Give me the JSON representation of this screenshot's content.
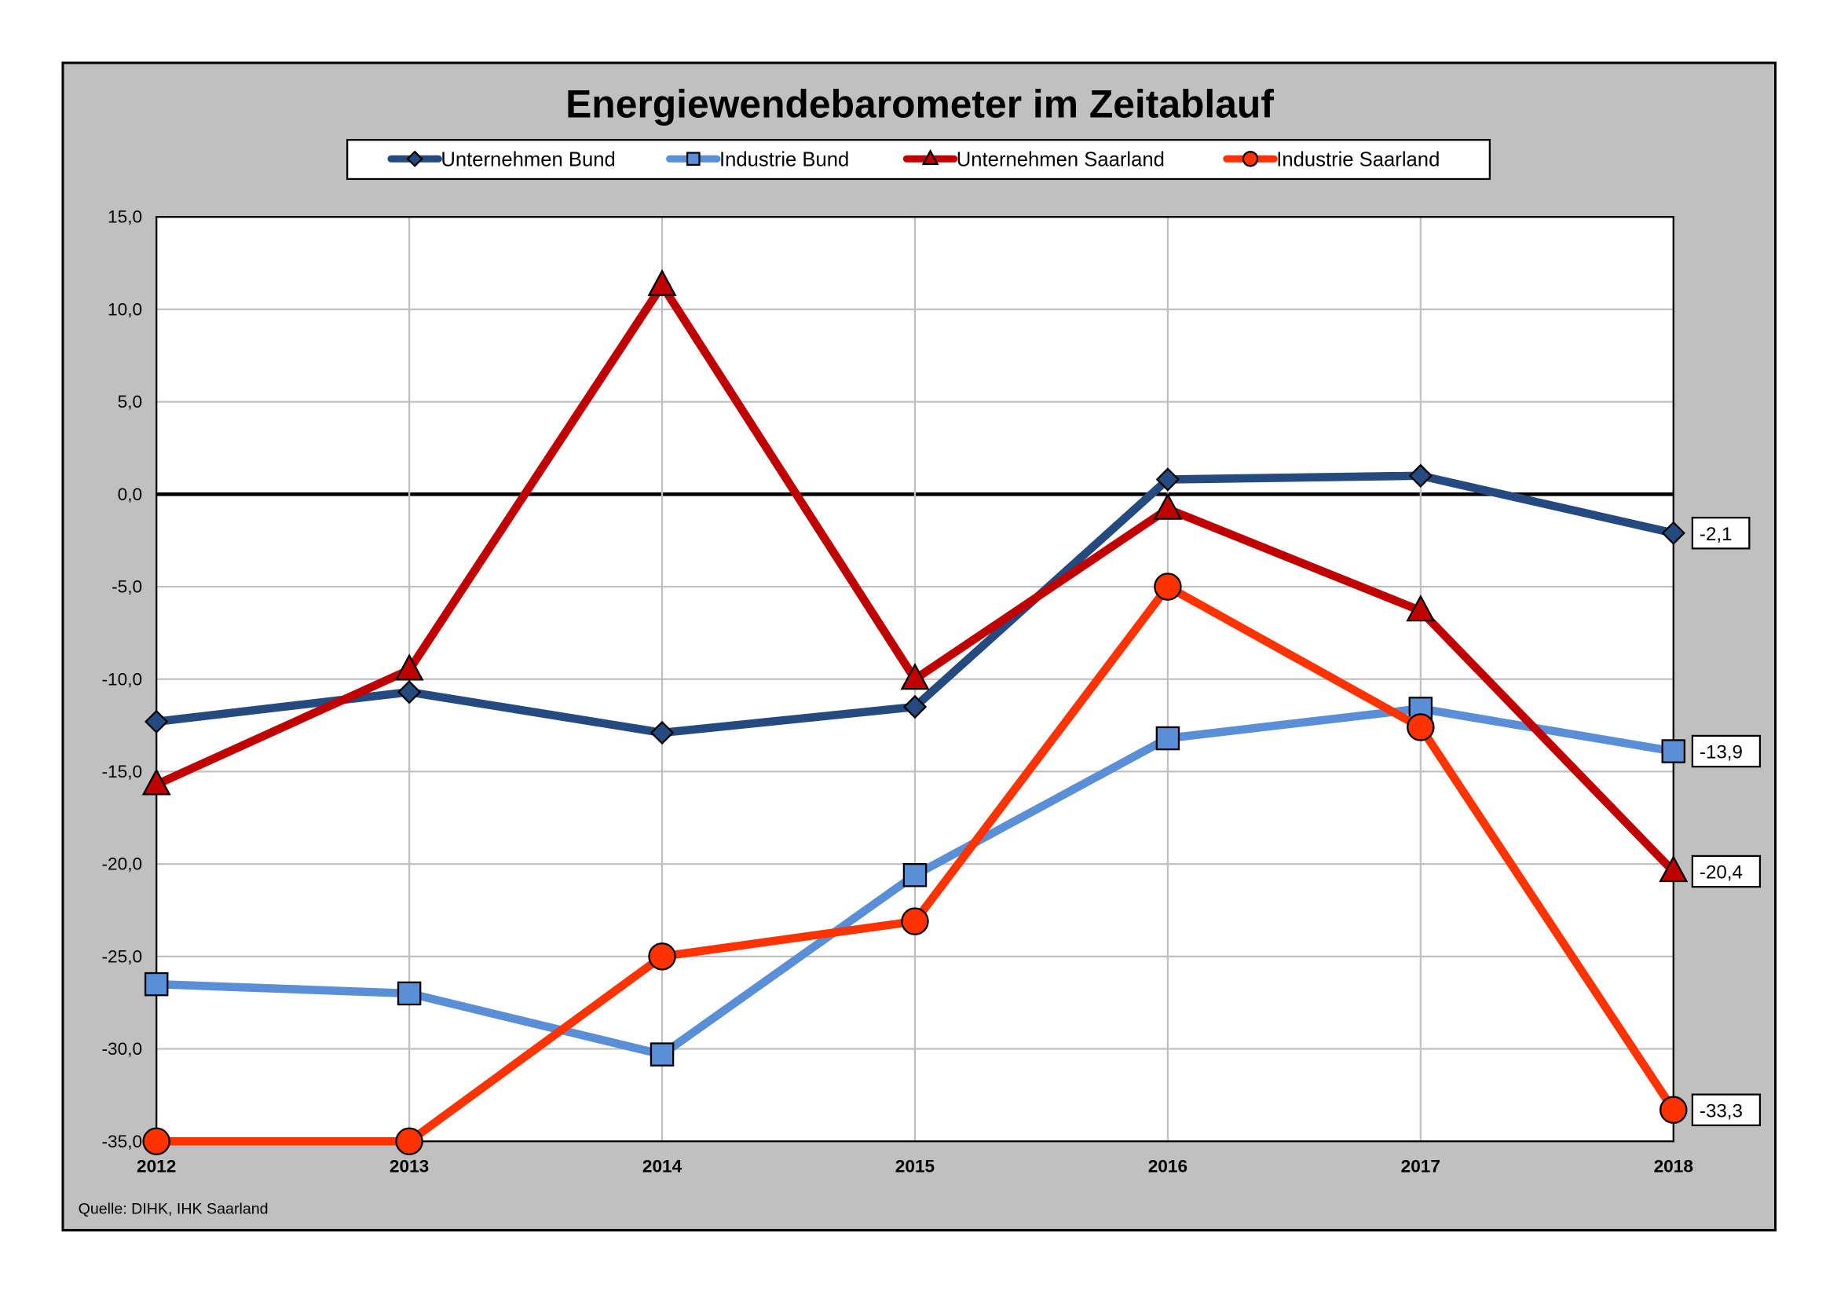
{
  "chart_data": {
    "type": "line",
    "title": "Energiewendebarometer im Zeitablauf",
    "source": "Quelle: DIHK, IHK Saarland",
    "categories": [
      "2012",
      "2013",
      "2014",
      "2015",
      "2016",
      "2017",
      "2018"
    ],
    "ylim": [
      -35,
      15
    ],
    "yticks": [
      15,
      10,
      5,
      0,
      -5,
      -10,
      -15,
      -20,
      -25,
      -30,
      -35
    ],
    "ytick_labels": [
      "15,0",
      "10,0",
      "5,0",
      "0,0",
      "-5,0",
      "-10,0",
      "-15,0",
      "-20,0",
      "-25,0",
      "-30,0",
      "-35,0"
    ],
    "grid": true,
    "legend_position": "top",
    "series": [
      {
        "name": "Unternehmen Bund",
        "marker": "diamond",
        "color": "#254A7F",
        "values": [
          -12.3,
          -10.7,
          -12.9,
          -11.5,
          0.8,
          1.0,
          -2.1
        ],
        "end_label": "-2,1"
      },
      {
        "name": "Industrie Bund",
        "marker": "square",
        "color": "#5A8ED6",
        "values": [
          -26.5,
          -27.0,
          -30.3,
          -20.6,
          -13.2,
          -11.6,
          -13.9
        ],
        "end_label": "-13,9"
      },
      {
        "name": "Unternehmen Saarland",
        "marker": "triangle",
        "color": "#C00000",
        "values": [
          -15.7,
          -9.5,
          11.3,
          -10.0,
          -0.8,
          -6.3,
          -20.4
        ],
        "end_label": "-20,4"
      },
      {
        "name": "Industrie Saarland",
        "marker": "circle",
        "color": "#FF3300",
        "values": [
          -35.0,
          -35.0,
          -25.0,
          -23.1,
          -5.0,
          -12.6,
          -33.3
        ],
        "end_label": "-33,3"
      }
    ]
  }
}
